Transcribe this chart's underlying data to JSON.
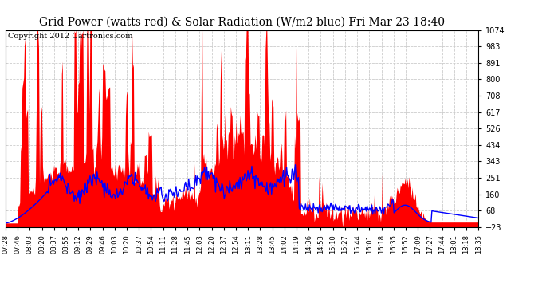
{
  "title": "Grid Power (watts red) & Solar Radiation (W/m2 blue) Fri Mar 23 18:40",
  "copyright": "Copyright 2012 Cartronics.com",
  "ymin": -23.0,
  "ymax": 1074.0,
  "yticks": [
    1074.0,
    982.6,
    891.2,
    799.8,
    708.4,
    616.9,
    525.5,
    434.1,
    342.7,
    251.3,
    159.8,
    68.4,
    -23.0
  ],
  "xtick_labels": [
    "07:28",
    "07:46",
    "08:03",
    "08:20",
    "08:37",
    "08:55",
    "09:12",
    "09:29",
    "09:46",
    "10:03",
    "10:20",
    "10:37",
    "10:54",
    "11:11",
    "11:28",
    "11:45",
    "12:03",
    "12:20",
    "12:37",
    "12:54",
    "13:11",
    "13:28",
    "13:45",
    "14:02",
    "14:19",
    "14:36",
    "14:53",
    "15:10",
    "15:27",
    "15:44",
    "16:01",
    "16:18",
    "16:35",
    "16:52",
    "17:09",
    "17:27",
    "17:44",
    "18:01",
    "18:18",
    "18:35"
  ],
  "bg_color": "#ffffff",
  "plot_bg_color": "#ffffff",
  "grid_color": "#cccccc",
  "red_fill_color": "#ff0000",
  "blue_line_color": "#0000ff",
  "title_fontsize": 10,
  "tick_fontsize": 7,
  "copyright_fontsize": 7
}
